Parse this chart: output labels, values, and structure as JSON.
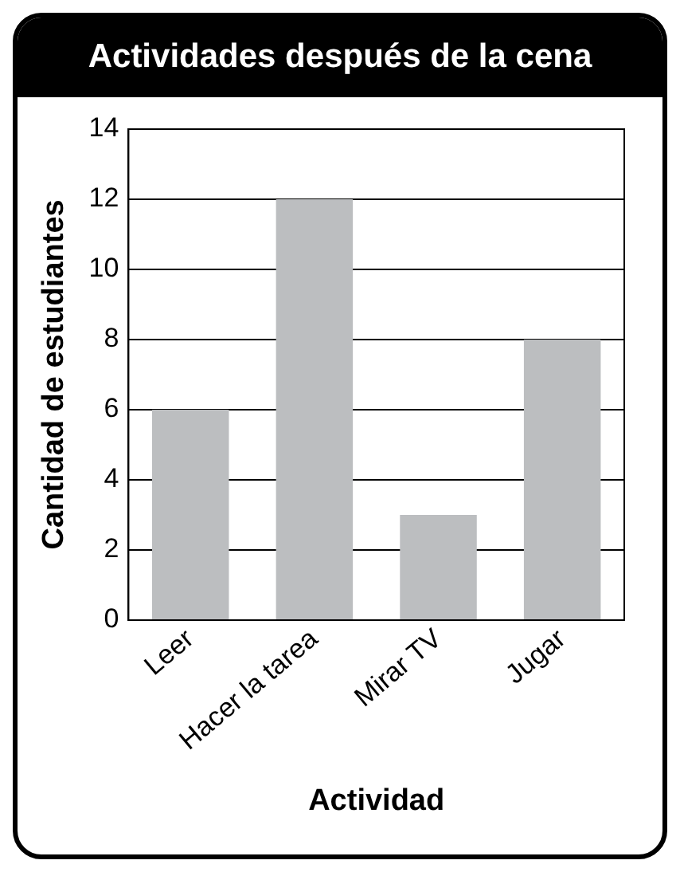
{
  "chart_data": {
    "type": "bar",
    "title": "Actividades después de la cena",
    "xlabel": "Actividad",
    "ylabel": "Cantidad de estudiantes",
    "categories": [
      "Leer",
      "Hacer la tarea",
      "Mirar TV",
      "Jugar"
    ],
    "values": [
      6,
      12,
      3,
      8
    ],
    "color": "#bcbec0",
    "ylim": [
      0,
      14
    ],
    "yticks": [
      0,
      2,
      4,
      6,
      8,
      10,
      12,
      14
    ],
    "grid": "y"
  }
}
